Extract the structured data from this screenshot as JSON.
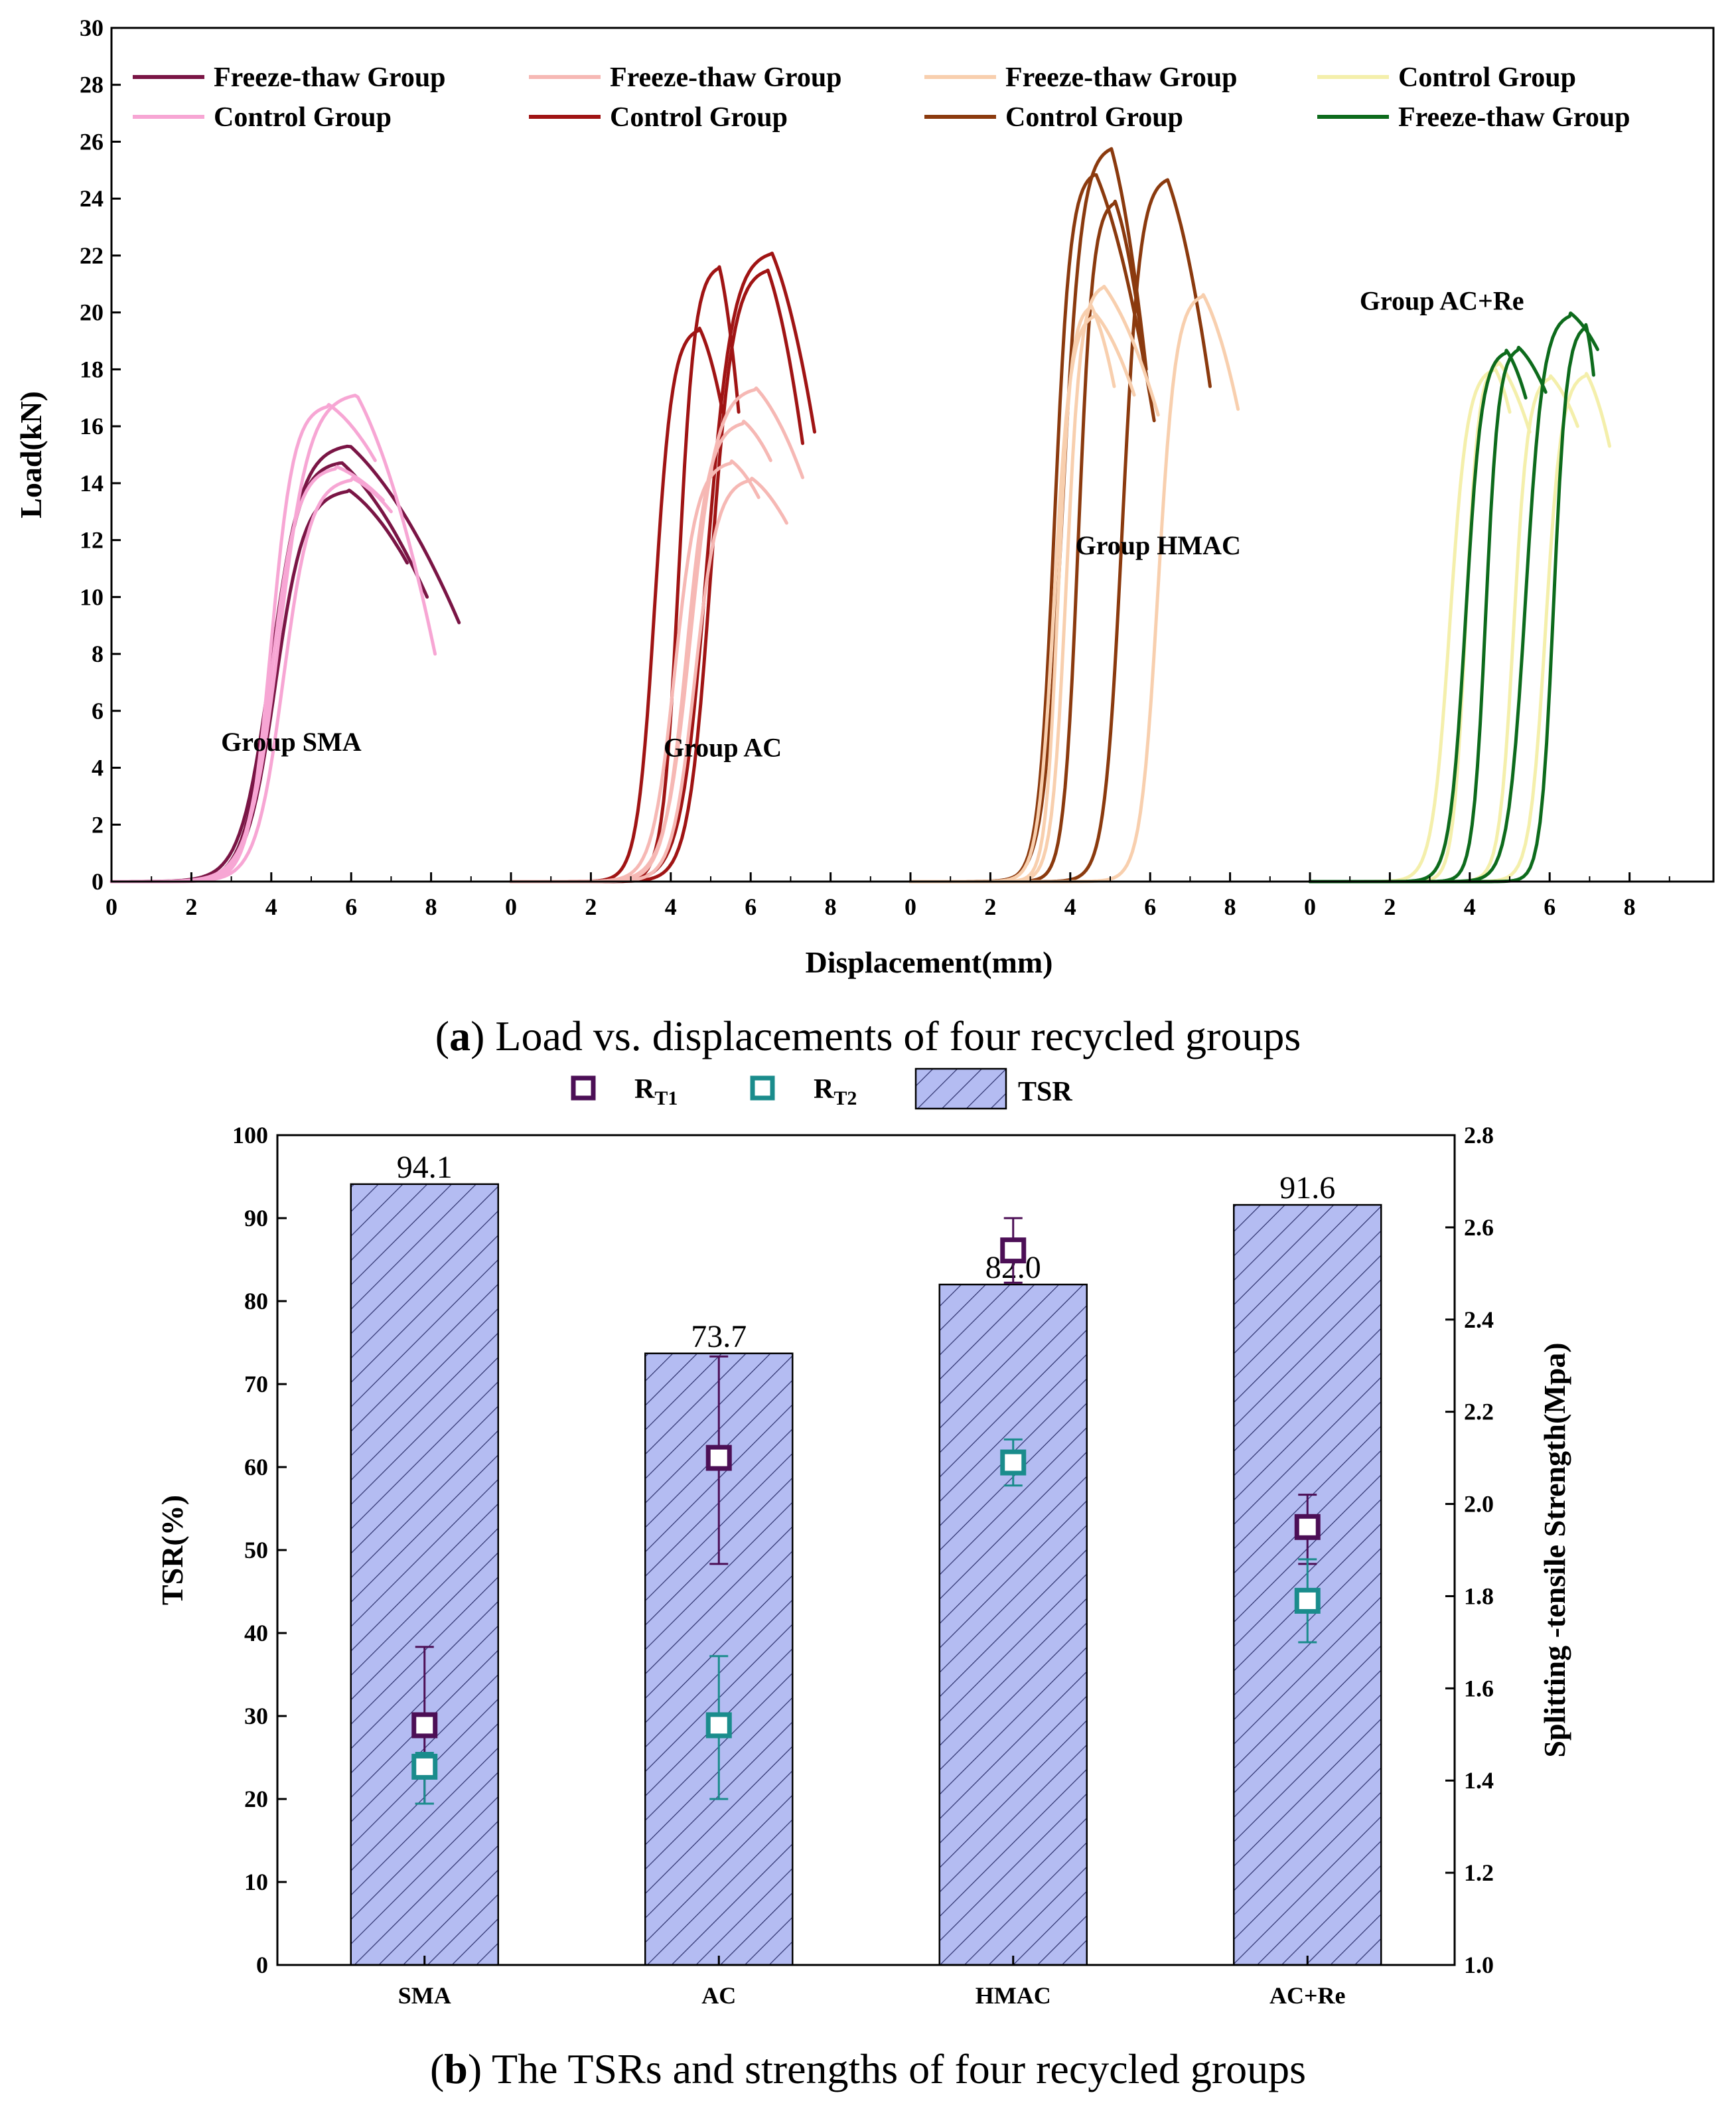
{
  "colors": {
    "sma_freeze_thaw": "#7a1545",
    "sma_control": "#f7a6d4",
    "ac_freeze_thaw": "#f6b8b4",
    "ac_control": "#a01414",
    "hmac_freeze_thaw": "#f8cfae",
    "hmac_control": "#8b3a0e",
    "acre_control": "#f4efab",
    "acre_freeze_thaw": "#0d6b1c",
    "bar_fill": "#b4bcf2",
    "bar_hatch": "#2b2f6b",
    "rt1": "#4c0f56",
    "rt2": "#1a8c8c"
  },
  "captions": {
    "a_letter": "a",
    "a_text": " Load vs. displacements of four recycled groups",
    "b_letter": "b",
    "b_text": " The TSRs and strengths of four recycled groups"
  },
  "chart_data": [
    {
      "type": "line",
      "xlabel": "Displacement(mm)",
      "ylabel": "Load(kN)",
      "ylim": [
        0,
        30
      ],
      "y_ticks": [
        "0",
        "2",
        "4",
        "6",
        "8",
        "10",
        "12",
        "14",
        "16",
        "18",
        "20",
        "22",
        "24",
        "26",
        "28",
        "30"
      ],
      "panel_xlim": [
        0,
        10
      ],
      "panel_x_ticks": [
        "0",
        "2",
        "4",
        "6",
        "8"
      ],
      "legend": [
        {
          "label": "Freeze-thaw Group",
          "color_key": "sma_freeze_thaw"
        },
        {
          "label": "Freeze-thaw Group",
          "color_key": "ac_freeze_thaw"
        },
        {
          "label": "Freeze-thaw Group",
          "color_key": "hmac_freeze_thaw"
        },
        {
          "label": "Control Group",
          "color_key": "acre_control"
        },
        {
          "label": "Control Group",
          "color_key": "sma_control"
        },
        {
          "label": "Control Group",
          "color_key": "ac_control"
        },
        {
          "label": "Control Group",
          "color_key": "hmac_control"
        },
        {
          "label": "Freeze-thaw Group",
          "color_key": "acre_freeze_thaw"
        }
      ],
      "groups": [
        {
          "label": "Group SMA",
          "label_pos": [
            4.5,
            4.6
          ],
          "series": [
            {
              "color_key": "sma_freeze_thaw",
              "toe": 0.0,
              "s": 4.0,
              "peak_x": 5.9,
              "peak_y": 15.4,
              "fall_x": 8.7,
              "fall_y": 9.1
            },
            {
              "color_key": "sma_freeze_thaw",
              "toe": 0.0,
              "s": 4.0,
              "peak_x": 5.7,
              "peak_y": 14.8,
              "fall_x": 7.9,
              "fall_y": 10.0
            },
            {
              "color_key": "sma_freeze_thaw",
              "toe": 0.0,
              "s": 4.1,
              "peak_x": 5.9,
              "peak_y": 13.8,
              "fall_x": 7.4,
              "fall_y": 11.2
            },
            {
              "color_key": "sma_control",
              "toe": 0.0,
              "s": 4.0,
              "peak_x": 5.4,
              "peak_y": 16.8,
              "fall_x": 6.6,
              "fall_y": 14.8
            },
            {
              "color_key": "sma_control",
              "toe": 0.0,
              "s": 4.2,
              "peak_x": 6.1,
              "peak_y": 17.2,
              "fall_x": 8.1,
              "fall_y": 8.0
            },
            {
              "color_key": "sma_control",
              "toe": 0.0,
              "s": 4.0,
              "peak_x": 5.6,
              "peak_y": 14.6,
              "fall_x": 6.8,
              "fall_y": 13.4
            },
            {
              "color_key": "sma_control",
              "toe": 0.0,
              "s": 4.3,
              "peak_x": 6.0,
              "peak_y": 14.2,
              "fall_x": 7.0,
              "fall_y": 13.0
            }
          ]
        },
        {
          "label": "Group AC",
          "label_pos": [
            5.3,
            4.4
          ],
          "series": [
            {
              "color_key": "ac_control",
              "toe": 0.6,
              "s": 3.6,
              "peak_x": 4.7,
              "peak_y": 19.5,
              "fall_x": 5.3,
              "fall_y": 16.5
            },
            {
              "color_key": "ac_control",
              "toe": 0.6,
              "s": 4.2,
              "peak_x": 5.2,
              "peak_y": 21.7,
              "fall_x": 5.7,
              "fall_y": 16.5
            },
            {
              "color_key": "ac_control",
              "toe": 1.1,
              "s": 4.9,
              "peak_x": 6.5,
              "peak_y": 22.2,
              "fall_x": 7.6,
              "fall_y": 15.8
            },
            {
              "color_key": "ac_control",
              "toe": 0.9,
              "s": 5.0,
              "peak_x": 6.4,
              "peak_y": 21.6,
              "fall_x": 7.3,
              "fall_y": 15.4
            },
            {
              "color_key": "ac_freeze_thaw",
              "toe": 0.2,
              "s": 4.5,
              "peak_x": 6.1,
              "peak_y": 17.4,
              "fall_x": 7.3,
              "fall_y": 14.2
            },
            {
              "color_key": "ac_freeze_thaw",
              "toe": 0.2,
              "s": 4.4,
              "peak_x": 5.8,
              "peak_y": 16.2,
              "fall_x": 6.5,
              "fall_y": 14.8
            },
            {
              "color_key": "ac_freeze_thaw",
              "toe": 0.2,
              "s": 4.1,
              "peak_x": 5.5,
              "peak_y": 14.8,
              "fall_x": 6.2,
              "fall_y": 13.5
            },
            {
              "color_key": "ac_freeze_thaw",
              "toe": 0.2,
              "s": 4.6,
              "peak_x": 6.0,
              "peak_y": 14.2,
              "fall_x": 6.9,
              "fall_y": 12.6
            }
          ]
        },
        {
          "label": "Group HMAC",
          "label_pos": [
            6.2,
            11.5
          ],
          "series": [
            {
              "color_key": "hmac_control",
              "toe": 0.6,
              "s": 3.6,
              "peak_x": 4.6,
              "peak_y": 25.0,
              "fall_x": 6.1,
              "fall_y": 16.2
            },
            {
              "color_key": "hmac_control",
              "toe": 0.7,
              "s": 3.8,
              "peak_x": 5.0,
              "peak_y": 25.9,
              "fall_x": 5.9,
              "fall_y": 18.0
            },
            {
              "color_key": "hmac_control",
              "toe": 1.0,
              "s": 4.2,
              "peak_x": 5.1,
              "peak_y": 24.0,
              "fall_x": 5.8,
              "fall_y": 19.0
            },
            {
              "color_key": "hmac_control",
              "toe": 2.8,
              "s": 5.3,
              "peak_x": 6.4,
              "peak_y": 24.8,
              "fall_x": 7.5,
              "fall_y": 17.4
            },
            {
              "color_key": "hmac_freeze_thaw",
              "toe": 0.1,
              "s": 3.9,
              "peak_x": 4.8,
              "peak_y": 21.0,
              "fall_x": 6.2,
              "fall_y": 16.4
            },
            {
              "color_key": "hmac_freeze_thaw",
              "toe": 0.1,
              "s": 3.6,
              "peak_x": 4.6,
              "peak_y": 20.0,
              "fall_x": 5.6,
              "fall_y": 17.1
            },
            {
              "color_key": "hmac_freeze_thaw",
              "toe": 0.1,
              "s": 3.7,
              "peak_x": 4.5,
              "peak_y": 20.3,
              "fall_x": 5.1,
              "fall_y": 17.4
            },
            {
              "color_key": "hmac_freeze_thaw",
              "toe": 2.6,
              "s": 6.2,
              "peak_x": 7.3,
              "peak_y": 20.7,
              "fall_x": 8.2,
              "fall_y": 16.6
            }
          ]
        },
        {
          "label": "Group AC+Re",
          "label_pos": [
            3.3,
            20.1
          ],
          "series": [
            {
              "color_key": "acre_control",
              "toe": 0.1,
              "s": 3.5,
              "peak_x": 4.6,
              "peak_y": 18.1,
              "fall_x": 5.0,
              "fall_y": 16.5
            },
            {
              "color_key": "acre_control",
              "toe": 0.3,
              "s": 3.9,
              "peak_x": 4.7,
              "peak_y": 18.3,
              "fall_x": 5.5,
              "fall_y": 15.8
            },
            {
              "color_key": "acre_control",
              "toe": 0.5,
              "s": 5.1,
              "peak_x": 6.0,
              "peak_y": 17.8,
              "fall_x": 6.7,
              "fall_y": 16.0
            },
            {
              "color_key": "acre_control",
              "toe": 0.7,
              "s": 5.9,
              "peak_x": 6.9,
              "peak_y": 17.9,
              "fall_x": 7.5,
              "fall_y": 15.3
            },
            {
              "color_key": "acre_freeze_thaw",
              "toe": 0.3,
              "s": 3.9,
              "peak_x": 4.9,
              "peak_y": 18.7,
              "fall_x": 5.4,
              "fall_y": 17.0
            },
            {
              "color_key": "acre_freeze_thaw",
              "toe": 0.5,
              "s": 4.4,
              "peak_x": 5.2,
              "peak_y": 18.8,
              "fall_x": 5.9,
              "fall_y": 17.2
            },
            {
              "color_key": "acre_freeze_thaw",
              "toe": 0.6,
              "s": 5.4,
              "peak_x": 6.5,
              "peak_y": 20.0,
              "fall_x": 7.2,
              "fall_y": 18.7
            },
            {
              "color_key": "acre_freeze_thaw",
              "toe": 1.2,
              "s": 6.1,
              "peak_x": 6.9,
              "peak_y": 19.6,
              "fall_x": 7.1,
              "fall_y": 17.8
            }
          ]
        }
      ]
    },
    {
      "type": "bar",
      "categories": [
        "SMA",
        "AC",
        "HMAC",
        "AC+Re"
      ],
      "ylabel": "TSR(%)",
      "y2label": "Splitting -tensile Strength(Mpa)",
      "ylim": [
        0,
        100
      ],
      "y_ticks": [
        "0",
        "10",
        "20",
        "30",
        "40",
        "50",
        "60",
        "70",
        "80",
        "90",
        "100"
      ],
      "y2lim": [
        1.0,
        2.8
      ],
      "y2_ticks": [
        "1.0",
        "1.2",
        "1.4",
        "1.6",
        "1.8",
        "2.0",
        "2.2",
        "2.4",
        "2.6",
        "2.8"
      ],
      "legend": [
        {
          "label": "R",
          "sub": "T1",
          "color_key": "rt1"
        },
        {
          "label": "R",
          "sub": "T2",
          "color_key": "rt2"
        },
        {
          "label": "TSR",
          "color_key": "bar_fill"
        }
      ],
      "series": [
        {
          "name": "TSR",
          "values": [
            94.1,
            73.7,
            82.0,
            91.6
          ],
          "labels": [
            "94.1",
            "73.7",
            "82.0",
            "91.6"
          ]
        },
        {
          "name": "RT1",
          "axis": "y2",
          "values": [
            1.52,
            2.1,
            2.55,
            1.95
          ],
          "err_lo": [
            1.35,
            1.87,
            2.48,
            1.87
          ],
          "err_hi": [
            1.69,
            2.32,
            2.62,
            2.02
          ]
        },
        {
          "name": "RT2",
          "axis": "y2",
          "values": [
            1.43,
            1.52,
            2.09,
            1.79
          ],
          "err_lo": [
            1.35,
            1.36,
            2.04,
            1.7
          ],
          "err_hi": [
            1.46,
            1.67,
            2.14,
            1.88
          ]
        }
      ]
    }
  ]
}
